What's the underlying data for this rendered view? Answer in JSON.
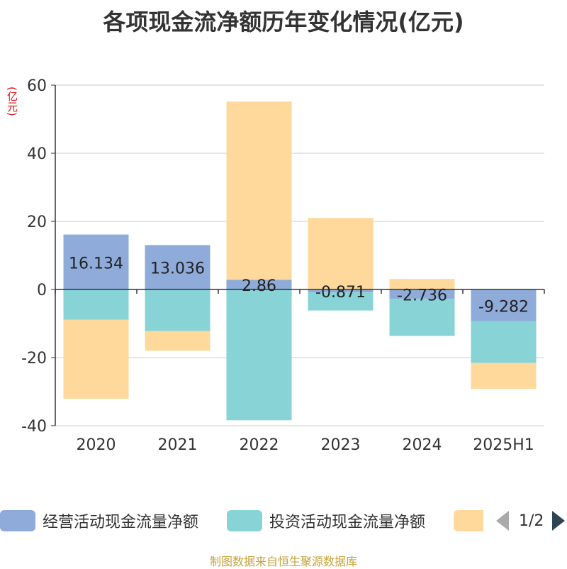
{
  "chart_data": {
    "type": "bar",
    "stacked": true,
    "title": "各项现金流净额历年变化情况(亿元)",
    "unit": "(亿元)",
    "categories": [
      "2020",
      "2021",
      "2022",
      "2023",
      "2024",
      "2025H1"
    ],
    "ylim": [
      -40,
      60
    ],
    "yticks": [
      60,
      40,
      20,
      0,
      -20,
      -40
    ],
    "grid": true,
    "series": [
      {
        "name": "经营活动现金流量净额",
        "color": "#8eabd9",
        "values": [
          16.134,
          13.036,
          2.86,
          -0.871,
          -2.736,
          -9.282
        ],
        "labels": [
          "16.134",
          "13.036",
          "2.86",
          "-0.871",
          "-2.736",
          "-9.282"
        ]
      },
      {
        "name": "投资活动现金流量净额",
        "color": "#87d3d6",
        "values": [
          -8.9,
          -12.2,
          -38.4,
          -5.3,
          -10.9,
          -12.3
        ]
      },
      {
        "name": "",
        "color": "#fed99b",
        "values": [
          -23.2,
          -5.8,
          52.3,
          21.0,
          3.1,
          -7.6
        ]
      }
    ]
  },
  "legend": {
    "items": [
      "经营活动现金流量净额",
      "投资活动现金流量净额",
      ""
    ],
    "page": "1/2"
  },
  "source": "制图数据来自恒生聚源数据库"
}
